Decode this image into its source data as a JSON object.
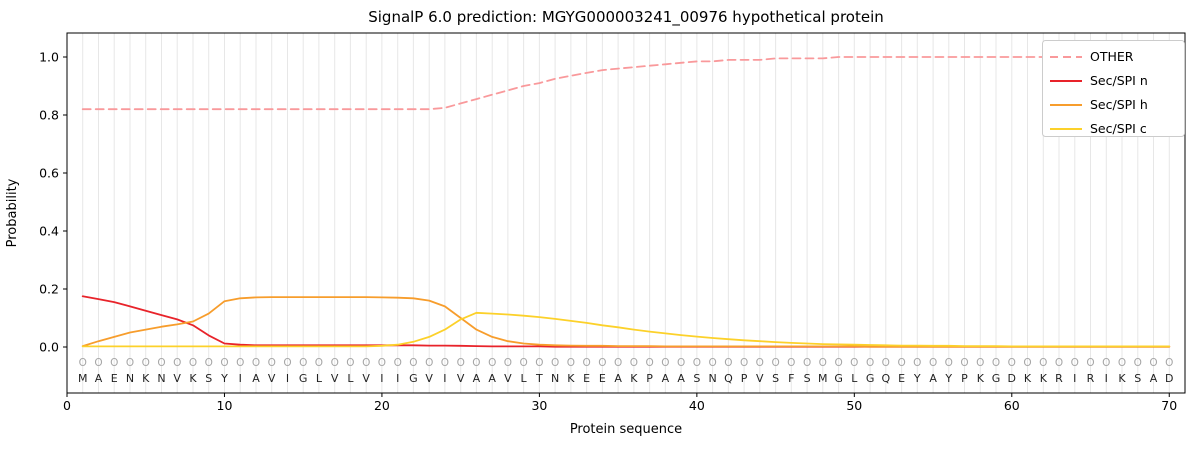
{
  "title": "SignalP 6.0 prediction: MGYG000003241_00976 hypothetical protein",
  "chart_data": {
    "type": "line",
    "title": "SignalP 6.0 prediction: MGYG000003241_00976 hypothetical protein",
    "xlabel": "Protein sequence",
    "ylabel": "Probability",
    "yticks": [
      0.0,
      0.2,
      0.4,
      0.6,
      0.8,
      1.0
    ],
    "xticks": [
      0,
      10,
      20,
      30,
      40,
      50,
      60,
      70
    ],
    "ylim": [
      0,
      1.05
    ],
    "xlim": [
      0,
      71
    ],
    "grid": true,
    "legend_position": "upper right",
    "sequence": "MAENKNVKSYIAVIGLVLVIIGVIVAAVLTNKEEAKPAASNQPVSFSMGLGQEYAYPKGDKKRIRIKSAD",
    "annotation": "OOOOOOOOOOOOOOOOOOOOOOOOOOOOOOOOOOOOOOOOOOOOOOOOOOOOOOOOOOOOOOOOOOOOOO",
    "x": [
      1,
      2,
      3,
      4,
      5,
      6,
      7,
      8,
      9,
      10,
      11,
      12,
      13,
      14,
      15,
      16,
      17,
      18,
      19,
      20,
      21,
      22,
      23,
      24,
      25,
      26,
      27,
      28,
      29,
      30,
      31,
      32,
      33,
      34,
      35,
      36,
      37,
      38,
      39,
      40,
      41,
      42,
      43,
      44,
      45,
      46,
      47,
      48,
      49,
      50,
      51,
      52,
      53,
      54,
      55,
      56,
      57,
      58,
      59,
      60,
      61,
      62,
      63,
      64,
      65,
      66,
      67,
      68,
      69,
      70
    ],
    "series": [
      {
        "name": "OTHER",
        "color": "#f9999b",
        "dashed": true,
        "values": [
          0.82,
          0.82,
          0.82,
          0.82,
          0.82,
          0.82,
          0.82,
          0.82,
          0.82,
          0.82,
          0.82,
          0.82,
          0.82,
          0.82,
          0.82,
          0.82,
          0.82,
          0.82,
          0.82,
          0.82,
          0.82,
          0.82,
          0.82,
          0.825,
          0.84,
          0.855,
          0.87,
          0.885,
          0.9,
          0.91,
          0.925,
          0.935,
          0.945,
          0.955,
          0.96,
          0.965,
          0.97,
          0.975,
          0.98,
          0.985,
          0.985,
          0.99,
          0.99,
          0.99,
          0.995,
          0.995,
          0.995,
          0.995,
          1.0,
          1.0,
          1.0,
          1.0,
          1.0,
          1.0,
          1.0,
          1.0,
          1.0,
          1.0,
          1.0,
          1.0,
          1.0,
          1.0,
          1.0,
          1.0,
          1.0,
          1.0,
          1.0,
          1.0,
          1.0,
          1.0
        ]
      },
      {
        "name": "Sec/SPI n",
        "color": "#e8232a",
        "dashed": false,
        "values": [
          0.175,
          0.165,
          0.155,
          0.14,
          0.125,
          0.11,
          0.095,
          0.075,
          0.04,
          0.012,
          0.008,
          0.006,
          0.006,
          0.006,
          0.006,
          0.006,
          0.006,
          0.006,
          0.006,
          0.006,
          0.006,
          0.006,
          0.005,
          0.005,
          0.004,
          0.003,
          0.002,
          0.002,
          0.002,
          0.002,
          0.001,
          0.001,
          0.001,
          0.001,
          0.001,
          0.001,
          0.001,
          0.001,
          0.001,
          0.001,
          0.001,
          0.001,
          0.001,
          0.001,
          0.001,
          0.001,
          0.001,
          0.001,
          0.001,
          0.001,
          0.001,
          0.001,
          0.001,
          0.001,
          0.001,
          0.001,
          0.001,
          0.001,
          0.001,
          0.001,
          0.001,
          0.001,
          0.001,
          0.001,
          0.001,
          0.001,
          0.001,
          0.001,
          0.001,
          0.001
        ]
      },
      {
        "name": "Sec/SPI h",
        "color": "#f79d2c",
        "dashed": false,
        "values": [
          0.003,
          0.02,
          0.035,
          0.05,
          0.06,
          0.07,
          0.078,
          0.088,
          0.115,
          0.158,
          0.168,
          0.171,
          0.172,
          0.172,
          0.172,
          0.172,
          0.172,
          0.172,
          0.172,
          0.171,
          0.17,
          0.168,
          0.16,
          0.14,
          0.1,
          0.06,
          0.035,
          0.02,
          0.012,
          0.008,
          0.006,
          0.005,
          0.004,
          0.004,
          0.003,
          0.003,
          0.003,
          0.002,
          0.002,
          0.002,
          0.002,
          0.002,
          0.002,
          0.002,
          0.002,
          0.002,
          0.002,
          0.002,
          0.002,
          0.002,
          0.001,
          0.001,
          0.001,
          0.001,
          0.001,
          0.001,
          0.001,
          0.001,
          0.001,
          0.001,
          0.001,
          0.001,
          0.001,
          0.001,
          0.001,
          0.001,
          0.001,
          0.001,
          0.001,
          0.001
        ]
      },
      {
        "name": "Sec/SPI c",
        "color": "#fcd12a",
        "dashed": false,
        "values": [
          0.002,
          0.002,
          0.002,
          0.002,
          0.002,
          0.002,
          0.002,
          0.002,
          0.002,
          0.002,
          0.002,
          0.002,
          0.002,
          0.002,
          0.002,
          0.002,
          0.002,
          0.002,
          0.002,
          0.004,
          0.008,
          0.018,
          0.035,
          0.06,
          0.095,
          0.118,
          0.115,
          0.112,
          0.108,
          0.103,
          0.097,
          0.09,
          0.083,
          0.075,
          0.068,
          0.06,
          0.053,
          0.047,
          0.041,
          0.036,
          0.031,
          0.027,
          0.023,
          0.02,
          0.017,
          0.014,
          0.012,
          0.01,
          0.009,
          0.008,
          0.007,
          0.006,
          0.005,
          0.005,
          0.004,
          0.004,
          0.003,
          0.003,
          0.003,
          0.002,
          0.002,
          0.002,
          0.002,
          0.002,
          0.002,
          0.002,
          0.002,
          0.002,
          0.002,
          0.002
        ]
      }
    ]
  }
}
